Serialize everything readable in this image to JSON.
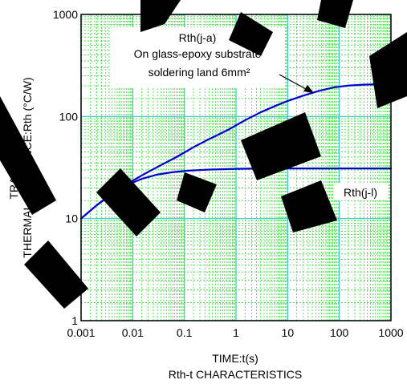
{
  "chart_data": {
    "type": "line",
    "title": "",
    "caption": "Rth-t CHARACTERISTICS",
    "xlabel": "TIME:t(s)",
    "ylabel_lines": [
      "TRANSIENT",
      "THERMAL IMPEDANCE:Rth (°C/W)"
    ],
    "x_scale": "log",
    "y_scale": "log",
    "xlim": [
      0.001,
      1000
    ],
    "ylim": [
      1,
      1000
    ],
    "x_ticks": [
      {
        "value": 0.001,
        "label": "0.001"
      },
      {
        "value": 0.01,
        "label": "0.01"
      },
      {
        "value": 0.1,
        "label": "0.1"
      },
      {
        "value": 1,
        "label": "1"
      },
      {
        "value": 10,
        "label": "10"
      },
      {
        "value": 100,
        "label": "100"
      },
      {
        "value": 1000,
        "label": "1000"
      }
    ],
    "y_ticks": [
      {
        "value": 1,
        "label": "1"
      },
      {
        "value": 10,
        "label": "10"
      },
      {
        "value": 100,
        "label": "100"
      },
      {
        "value": 1000,
        "label": "1000"
      }
    ],
    "grid": true,
    "series": [
      {
        "name": "Rth(j-a)",
        "color": "#0000cc",
        "points": [
          [
            0.001,
            10
          ],
          [
            0.002,
            13.5
          ],
          [
            0.004,
            17.5
          ],
          [
            0.008,
            22
          ],
          [
            0.015,
            26.5
          ],
          [
            0.03,
            32
          ],
          [
            0.07,
            40
          ],
          [
            0.15,
            50
          ],
          [
            0.3,
            60
          ],
          [
            0.7,
            74
          ],
          [
            1.5,
            92
          ],
          [
            3,
            110
          ],
          [
            6,
            128
          ],
          [
            10,
            142
          ],
          [
            20,
            160
          ],
          [
            40,
            178
          ],
          [
            80,
            193
          ],
          [
            150,
            201
          ],
          [
            300,
            205
          ],
          [
            600,
            207
          ],
          [
            1000,
            208
          ]
        ]
      },
      {
        "name": "Rth(j-l)",
        "color": "#0000cc",
        "points": [
          [
            0.001,
            10
          ],
          [
            0.002,
            13.5
          ],
          [
            0.004,
            17.5
          ],
          [
            0.008,
            21.5
          ],
          [
            0.015,
            24.5
          ],
          [
            0.03,
            27
          ],
          [
            0.06,
            28.5
          ],
          [
            0.12,
            29.5
          ],
          [
            0.3,
            30.2
          ],
          [
            1,
            30.7
          ],
          [
            3,
            31
          ],
          [
            10,
            31
          ],
          [
            100,
            31
          ],
          [
            1000,
            31
          ]
        ]
      }
    ],
    "annotations": [
      {
        "name": "label-rth-ja",
        "text": "Rth(j-a)"
      },
      {
        "name": "label-substrate",
        "text": "On glass-epoxy substrate"
      },
      {
        "name": "label-land",
        "text": "soldering land 6mm²"
      },
      {
        "name": "label-rth-jl",
        "text": "Rth(j-l)"
      }
    ],
    "colors": {
      "minor_grid": "#33dd33",
      "major_grid": "#33cccc",
      "curve": "#0000cc",
      "watermark": "#000000"
    }
  }
}
